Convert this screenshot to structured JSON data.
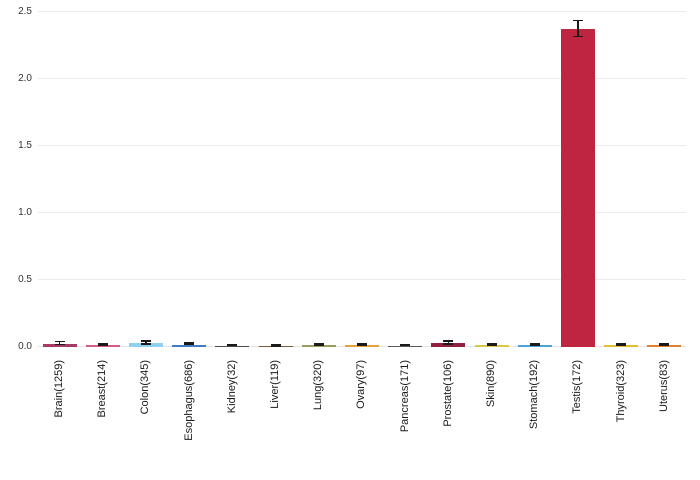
{
  "chart_data": {
    "type": "bar",
    "title": "",
    "xlabel": "",
    "ylabel": "",
    "ylim": [
      0,
      2.5
    ],
    "yticks": [
      "0.0",
      "0.5",
      "1.0",
      "1.5",
      "2.0",
      "2.5"
    ],
    "ytick_values": [
      0,
      0.5,
      1.0,
      1.5,
      2.0,
      2.5
    ],
    "grid": "horizontal-light",
    "legend": "none",
    "categories": [
      "Brain(1259)",
      "Breast(214)",
      "Colon(345)",
      "Esophagus(686)",
      "Kidney(32)",
      "Liver(119)",
      "Lung(320)",
      "Ovary(97)",
      "Pancreas(171)",
      "Prostate(106)",
      "Skin(890)",
      "Stomach(192)",
      "Testis(172)",
      "Thyroid(323)",
      "Uterus(83)"
    ],
    "values": [
      0.025,
      0.015,
      0.028,
      0.018,
      0.008,
      0.005,
      0.012,
      0.012,
      0.008,
      0.028,
      0.012,
      0.015,
      2.37,
      0.012,
      0.015
    ],
    "errors": [
      0.012,
      0.006,
      0.01,
      0.006,
      0.004,
      0.003,
      0.005,
      0.006,
      0.004,
      0.012,
      0.004,
      0.006,
      0.06,
      0.004,
      0.006
    ],
    "colors": [
      "#a63a68",
      "#d35d7e",
      "#8fd1f0",
      "#3f7cc0",
      "#4a4a4a",
      "#7a5c3a",
      "#9c9c5e",
      "#e8a23c",
      "#5a5a5a",
      "#8f1f3f",
      "#d8c84a",
      "#4aa3d8",
      "#bf2540",
      "#e0c030",
      "#e08030"
    ],
    "bar_color_main": "#bf2540",
    "error_bar_color": "#1a1a1a",
    "gridline_color": "#ebebeb",
    "background_color": "#ffffff"
  }
}
